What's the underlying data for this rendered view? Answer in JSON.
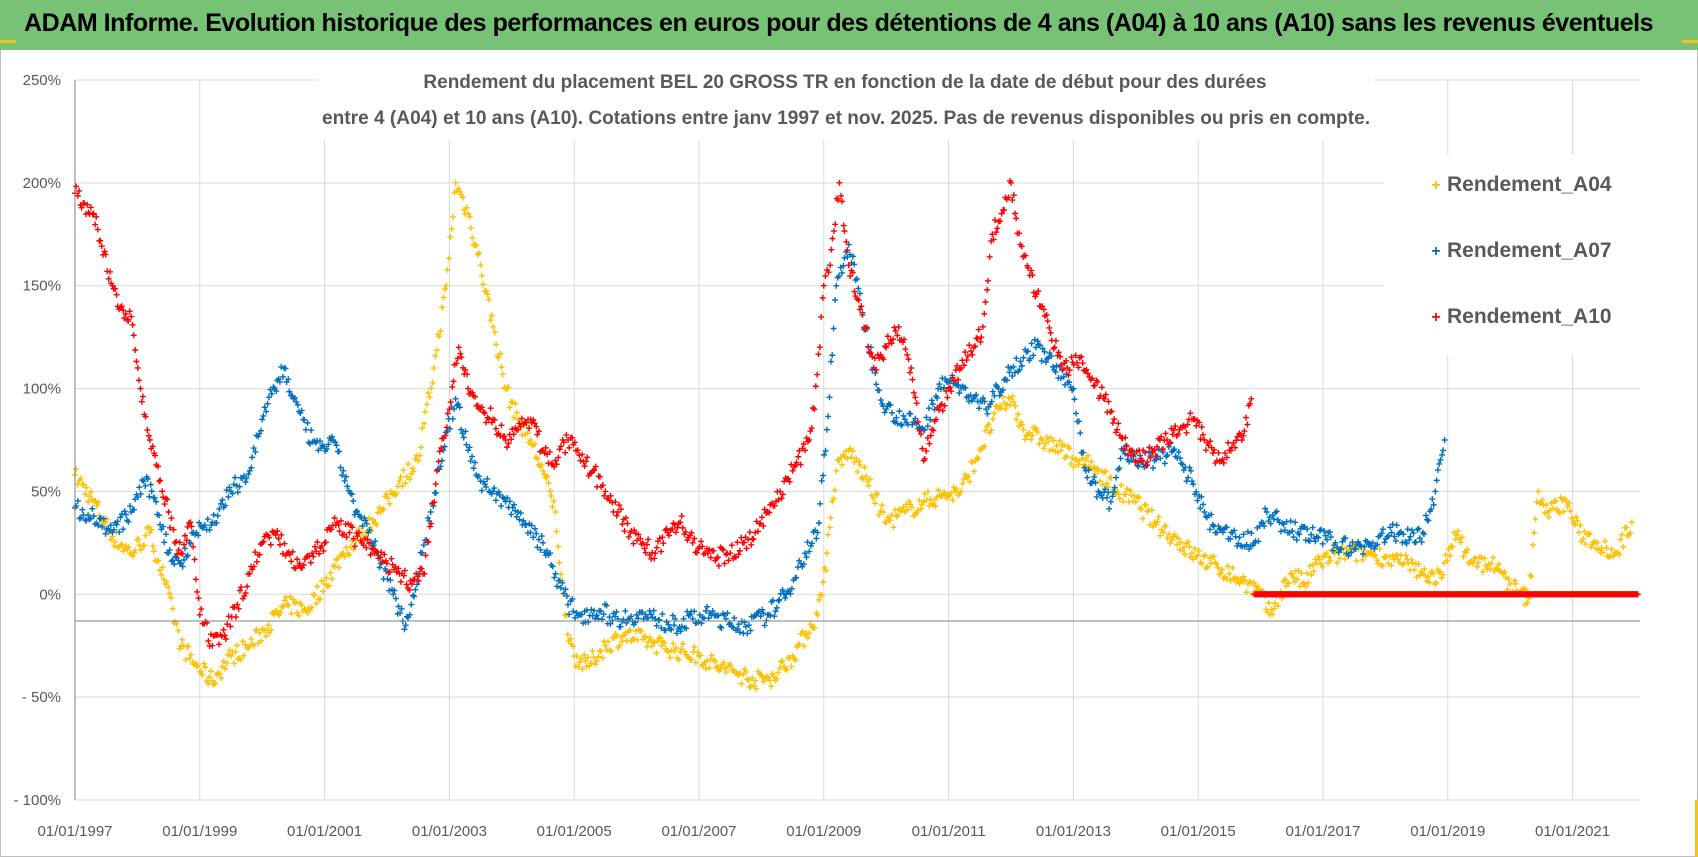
{
  "header": {
    "title": "ADAM Informe. Evolution historique des performances en euros pour des détentions de 4 ans (A04) à 10 ans (A10) sans les revenus éventuels"
  },
  "colors": {
    "banner": "#77c274",
    "accent": "#f0c22a",
    "A04": "#ffc000",
    "A07": "#0070c0",
    "A10": "#ff0000",
    "grid": "#d9d9d9",
    "text": "#595959"
  },
  "chart_data": {
    "type": "scatter",
    "title_line1": "Rendement du placement BEL 20 GROSS TR en fonction de la date de début pour des durées",
    "title_line2": "entre 4 (A04) et 10 ans (A10).  Cotations entre janv 1997 et nov. 2025. Pas de revenus disponibles ou pris en compte.",
    "xlabel": "",
    "ylabel": "",
    "x_range": [
      1997.0,
      2022.1
    ],
    "ylim": [
      -100,
      250
    ],
    "y_ticks": [
      -100,
      -50,
      0,
      50,
      100,
      150,
      200,
      250
    ],
    "y_tick_labels": [
      "- 100%",
      "- 50%",
      "0%",
      "50%",
      "100%",
      "150%",
      "200%",
      "250%"
    ],
    "x_ticks": [
      1997,
      1999,
      2001,
      2003,
      2005,
      2007,
      2009,
      2011,
      2013,
      2015,
      2017,
      2019,
      2021
    ],
    "x_tick_labels": [
      "01/01/1997",
      "01/01/1999",
      "01/01/2001",
      "01/01/2003",
      "01/01/2005",
      "01/01/2007",
      "01/01/2009",
      "01/01/2011",
      "01/01/2013",
      "01/01/2015",
      "01/01/2017",
      "01/01/2019",
      "01/01/2021"
    ],
    "grid": true,
    "legend_position": "right",
    "marker": "+",
    "series": [
      {
        "name": "Rendement_A04",
        "color": "#ffc000",
        "x": [
          1997.0,
          1997.3,
          1997.6,
          1997.9,
          1998.2,
          1998.45,
          1998.7,
          1998.95,
          1999.2,
          1999.5,
          1999.8,
          2000.1,
          2000.4,
          2000.7,
          2001.0,
          2001.3,
          2001.6,
          2001.9,
          2002.2,
          2002.5,
          2002.75,
          2002.95,
          2003.1,
          2003.3,
          2003.5,
          2003.7,
          2003.9,
          2004.1,
          2004.3,
          2004.5,
          2004.7,
          2004.85,
          2005.0,
          2005.2,
          2005.5,
          2005.8,
          2006.1,
          2006.4,
          2006.7,
          2007.0,
          2007.3,
          2007.6,
          2007.9,
          2008.2,
          2008.5,
          2008.7,
          2008.9,
          2009.05,
          2009.2,
          2009.4,
          2009.7,
          2010.0,
          2010.3,
          2010.6,
          2010.9,
          2011.2,
          2011.5,
          2011.8,
          2012.0,
          2012.2,
          2012.5,
          2012.8,
          2013.1,
          2013.4,
          2013.7,
          2014.0,
          2014.3,
          2014.6,
          2014.9,
          2015.2,
          2015.5,
          2015.8,
          2016.0,
          2016.15,
          2016.3,
          2016.5,
          2016.7,
          2016.9,
          2017.1,
          2017.4,
          2017.7,
          2018.0,
          2018.3,
          2018.6,
          2018.9,
          2019.1,
          2019.4,
          2019.7,
          2020.0,
          2020.15,
          2020.3,
          2020.45,
          2020.6,
          2020.9,
          2021.1,
          2021.4,
          2021.7,
          2021.95
        ],
        "y": [
          58,
          45,
          28,
          20,
          30,
          5,
          -25,
          -35,
          -42,
          -30,
          -25,
          -15,
          -5,
          -8,
          5,
          20,
          30,
          40,
          55,
          65,
          110,
          150,
          200,
          185,
          160,
          130,
          100,
          85,
          75,
          60,
          40,
          -10,
          -30,
          -35,
          -25,
          -20,
          -22,
          -25,
          -28,
          -30,
          -35,
          -38,
          -42,
          -40,
          -30,
          -20,
          -10,
          20,
          60,
          70,
          55,
          35,
          40,
          45,
          48,
          50,
          70,
          90,
          95,
          80,
          75,
          70,
          65,
          60,
          50,
          45,
          35,
          28,
          20,
          15,
          10,
          5,
          0,
          -10,
          0,
          10,
          5,
          15,
          18,
          20,
          20,
          18,
          15,
          10,
          8,
          30,
          15,
          15,
          5,
          0,
          -2,
          50,
          40,
          45,
          30,
          25,
          20,
          35
        ]
      },
      {
        "name": "Rendement_A07",
        "color": "#0070c0",
        "x": [
          1997.0,
          1997.3,
          1997.6,
          1997.9,
          1998.1,
          1998.3,
          1998.5,
          1998.7,
          1998.9,
          1999.2,
          1999.5,
          1999.8,
          2000.0,
          2000.2,
          2000.35,
          2000.5,
          2000.7,
          2000.9,
          2001.1,
          2001.3,
          2001.5,
          2001.7,
          2001.9,
          2002.1,
          2002.3,
          2002.5,
          2002.7,
          2002.9,
          2003.1,
          2003.3,
          2003.5,
          2003.7,
          2003.9,
          2004.1,
          2004.3,
          2004.5,
          2004.7,
          2004.9,
          2005.1,
          2005.4,
          2005.7,
          2006.0,
          2006.3,
          2006.6,
          2006.9,
          2007.2,
          2007.5,
          2007.8,
          2008.1,
          2008.4,
          2008.7,
          2008.9,
          2009.05,
          2009.2,
          2009.4,
          2009.6,
          2009.8,
          2010.0,
          2010.3,
          2010.6,
          2010.9,
          2011.2,
          2011.4,
          2011.6,
          2011.8,
          2012.0,
          2012.2,
          2012.4,
          2012.6,
          2012.8,
          2013.0,
          2013.2,
          2013.4,
          2013.6,
          2013.8,
          2014.0,
          2014.3,
          2014.6,
          2014.9,
          2015.1,
          2015.3,
          2015.6,
          2015.9,
          2016.1,
          2016.3,
          2016.6,
          2016.9,
          2017.2,
          2017.5,
          2017.8,
          2018.1,
          2018.4,
          2018.6,
          2018.8,
          2018.95
        ],
        "y": [
          42,
          38,
          30,
          40,
          55,
          45,
          20,
          15,
          30,
          35,
          50,
          60,
          85,
          100,
          110,
          95,
          80,
          70,
          75,
          60,
          40,
          30,
          15,
          0,
          -15,
          10,
          40,
          70,
          95,
          70,
          55,
          50,
          45,
          40,
          30,
          25,
          10,
          -5,
          -10,
          -8,
          -12,
          -10,
          -12,
          -15,
          -12,
          -10,
          -14,
          -15,
          -10,
          0,
          20,
          30,
          80,
          150,
          170,
          140,
          110,
          90,
          85,
          80,
          105,
          100,
          95,
          90,
          100,
          110,
          115,
          120,
          115,
          105,
          100,
          60,
          50,
          45,
          70,
          65,
          65,
          70,
          55,
          40,
          30,
          28,
          25,
          40,
          35,
          30,
          28,
          25,
          22,
          25,
          30,
          28,
          30,
          50,
          75
        ]
      },
      {
        "name": "Rendement_A10",
        "color": "#ff0000",
        "x": [
          1997.0,
          1997.15,
          1997.3,
          1997.45,
          1997.6,
          1997.75,
          1997.9,
          1998.05,
          1998.2,
          1998.35,
          1998.5,
          1998.6,
          1998.7,
          1998.85,
          1999.0,
          1999.2,
          1999.4,
          1999.6,
          1999.8,
          2000.0,
          2000.2,
          2000.4,
          2000.6,
          2000.8,
          2001.0,
          2001.2,
          2001.4,
          2001.6,
          2001.8,
          2002.0,
          2002.2,
          2002.4,
          2002.6,
          2002.8,
          2003.0,
          2003.15,
          2003.3,
          2003.5,
          2003.7,
          2003.9,
          2004.1,
          2004.3,
          2004.5,
          2004.7,
          2004.9,
          2005.1,
          2005.3,
          2005.5,
          2005.7,
          2005.9,
          2006.1,
          2006.3,
          2006.5,
          2006.7,
          2006.9,
          2007.1,
          2007.3,
          2007.5,
          2007.7,
          2007.9,
          2008.1,
          2008.3,
          2008.5,
          2008.7,
          2008.85,
          2009.0,
          2009.1,
          2009.25,
          2009.4,
          2009.6,
          2009.8,
          2010.0,
          2010.2,
          2010.4,
          2010.6,
          2010.8,
          2011.0,
          2011.2,
          2011.4,
          2011.55,
          2011.7,
          2011.85,
          2012.0,
          2012.15,
          2012.3,
          2012.5,
          2012.7,
          2012.9,
          2013.1,
          2013.3,
          2013.5,
          2013.7,
          2013.9,
          2014.1,
          2014.3,
          2014.5,
          2014.7,
          2014.9,
          2015.1,
          2015.3,
          2015.5,
          2015.7,
          2015.85
        ],
        "y": [
          195,
          190,
          185,
          165,
          150,
          140,
          135,
          100,
          75,
          55,
          40,
          25,
          20,
          35,
          -10,
          -25,
          -20,
          -5,
          10,
          25,
          30,
          20,
          15,
          20,
          25,
          35,
          30,
          25,
          20,
          15,
          10,
          5,
          10,
          60,
          90,
          120,
          100,
          90,
          85,
          75,
          80,
          85,
          70,
          65,
          75,
          65,
          60,
          50,
          40,
          30,
          25,
          20,
          30,
          35,
          25,
          20,
          18,
          20,
          25,
          30,
          40,
          50,
          60,
          70,
          90,
          150,
          160,
          200,
          160,
          140,
          110,
          120,
          130,
          110,
          65,
          85,
          100,
          110,
          120,
          130,
          175,
          185,
          200,
          170,
          155,
          140,
          120,
          110,
          115,
          105,
          95,
          80,
          70,
          65,
          70,
          75,
          80,
          85,
          75,
          65,
          70,
          75,
          95
        ],
        "flat_x": [
          2015.9,
          2022.05
        ],
        "flat_y": 0
      }
    ]
  }
}
